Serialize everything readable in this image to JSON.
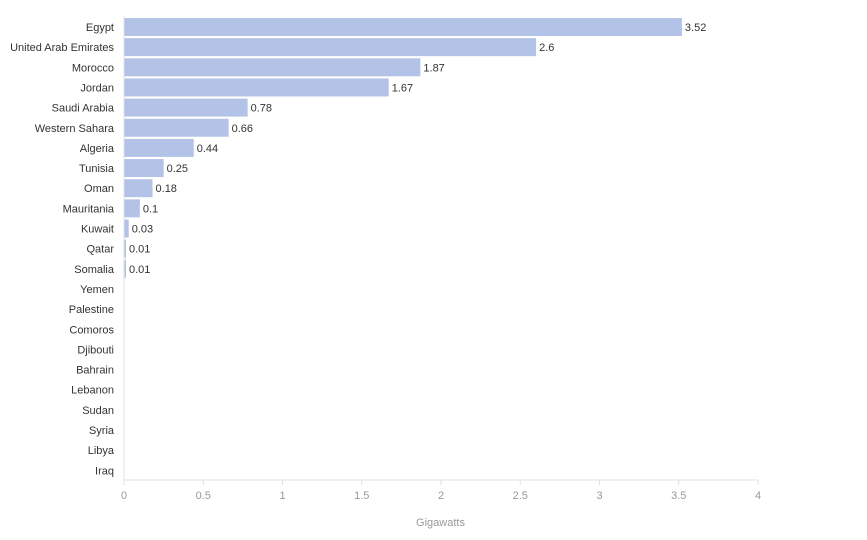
{
  "chart_data": {
    "type": "bar",
    "orientation": "horizontal",
    "categories": [
      "Egypt",
      "United Arab Emirates",
      "Morocco",
      "Jordan",
      "Saudi Arabia",
      "Western Sahara",
      "Algeria",
      "Tunisia",
      "Oman",
      "Mauritania",
      "Kuwait",
      "Qatar",
      "Somalia",
      "Yemen",
      "Palestine",
      "Comoros",
      "Djibouti",
      "Bahrain",
      "Lebanon",
      "Sudan",
      "Syria",
      "Libya",
      "Iraq"
    ],
    "values": [
      3.52,
      2.6,
      1.87,
      1.67,
      0.78,
      0.66,
      0.44,
      0.25,
      0.18,
      0.1,
      0.03,
      0.01,
      0.01,
      null,
      null,
      null,
      null,
      null,
      null,
      null,
      null,
      null,
      null
    ],
    "value_labels": [
      "3.52",
      "2.6",
      "1.87",
      "1.67",
      "0.78",
      "0.66",
      "0.44",
      "0.25",
      "0.18",
      "0.1",
      "0.03",
      "0.01",
      "0.01",
      "",
      "",
      "",
      "",
      "",
      "",
      "",
      "",
      "",
      ""
    ],
    "xlabel": "Gigawatts",
    "xlim": [
      0,
      4
    ],
    "xticks": [
      0,
      0.5,
      1,
      1.5,
      2,
      2.5,
      3,
      3.5,
      4
    ],
    "xtick_labels": [
      "0",
      "0.5",
      "1",
      "1.5",
      "2",
      "2.5",
      "3",
      "3.5",
      "4"
    ],
    "grid": false,
    "bar_color": "#b3c3e8",
    "axis_color": "#e0e0e0"
  }
}
